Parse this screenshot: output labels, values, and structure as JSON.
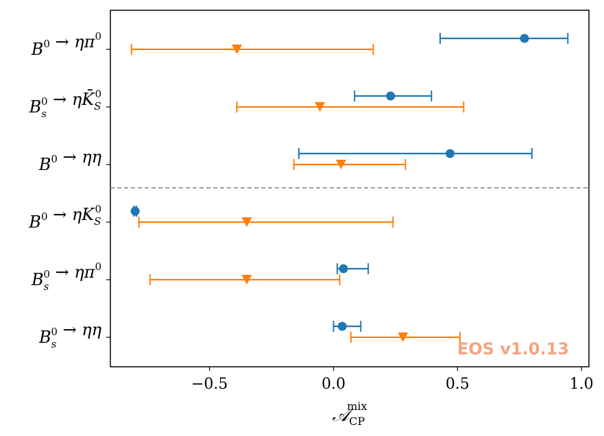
{
  "watermark": "EOS v1.0.13",
  "chart_data": {
    "type": "errorbar",
    "xlabel": "𝒜",
    "xlabel_main": "𝒜",
    "xlabel_sup": "mix",
    "xlabel_sub": "CP",
    "xlim": [
      -0.9,
      1.03
    ],
    "xticks": [
      -0.5,
      0.0,
      0.5,
      1.0
    ],
    "xtick_labels": [
      "−0.5",
      "0.0",
      "0.5",
      "1.0"
    ],
    "categories": [
      {
        "main": "B",
        "sup": "0",
        "sub": "",
        "rest": " → ηπ",
        "rest_sup": "0",
        "rest_sub": ""
      },
      {
        "main": "B",
        "sup": "0",
        "sub": "s",
        "rest": " → ηK̄",
        "rest_sup": "0",
        "rest_sub": "S"
      },
      {
        "main": "B",
        "sup": "0",
        "sub": "",
        "rest": " → ηη",
        "rest_sup": "",
        "rest_sub": ""
      },
      {
        "main": "B",
        "sup": "0",
        "sub": "",
        "rest": " → ηK",
        "rest_sup": "0",
        "rest_sub": "S"
      },
      {
        "main": "B",
        "sup": "0",
        "sub": "s",
        "rest": " → ηπ",
        "rest_sup": "0",
        "rest_sub": ""
      },
      {
        "main": "B",
        "sup": "0",
        "sub": "s",
        "rest": " → ηη",
        "rest_sup": "",
        "rest_sub": ""
      }
    ],
    "series": [
      {
        "color": "#1f77b4",
        "marker": "circle",
        "points": [
          {
            "value": 0.77,
            "lo": 0.43,
            "hi": 0.945
          },
          {
            "value": 0.23,
            "lo": 0.085,
            "hi": 0.395
          },
          {
            "value": 0.47,
            "lo": -0.14,
            "hi": 0.8
          },
          {
            "value": -0.8,
            "lo": -0.805,
            "hi": -0.795
          },
          {
            "value": 0.04,
            "lo": 0.015,
            "hi": 0.14
          },
          {
            "value": 0.035,
            "lo": 0.0,
            "hi": 0.11
          }
        ]
      },
      {
        "color": "#ff7f0e",
        "marker": "triangle-down",
        "points": [
          {
            "value": -0.39,
            "lo": -0.815,
            "hi": 0.16
          },
          {
            "value": -0.055,
            "lo": -0.39,
            "hi": 0.525
          },
          {
            "value": 0.03,
            "lo": -0.16,
            "hi": 0.29
          },
          {
            "value": -0.35,
            "lo": -0.785,
            "hi": 0.24
          },
          {
            "value": -0.35,
            "lo": -0.74,
            "hi": 0.025
          },
          {
            "value": 0.28,
            "lo": 0.07,
            "hi": 0.51
          }
        ]
      }
    ],
    "separator_after_category": 3,
    "grid": false
  }
}
